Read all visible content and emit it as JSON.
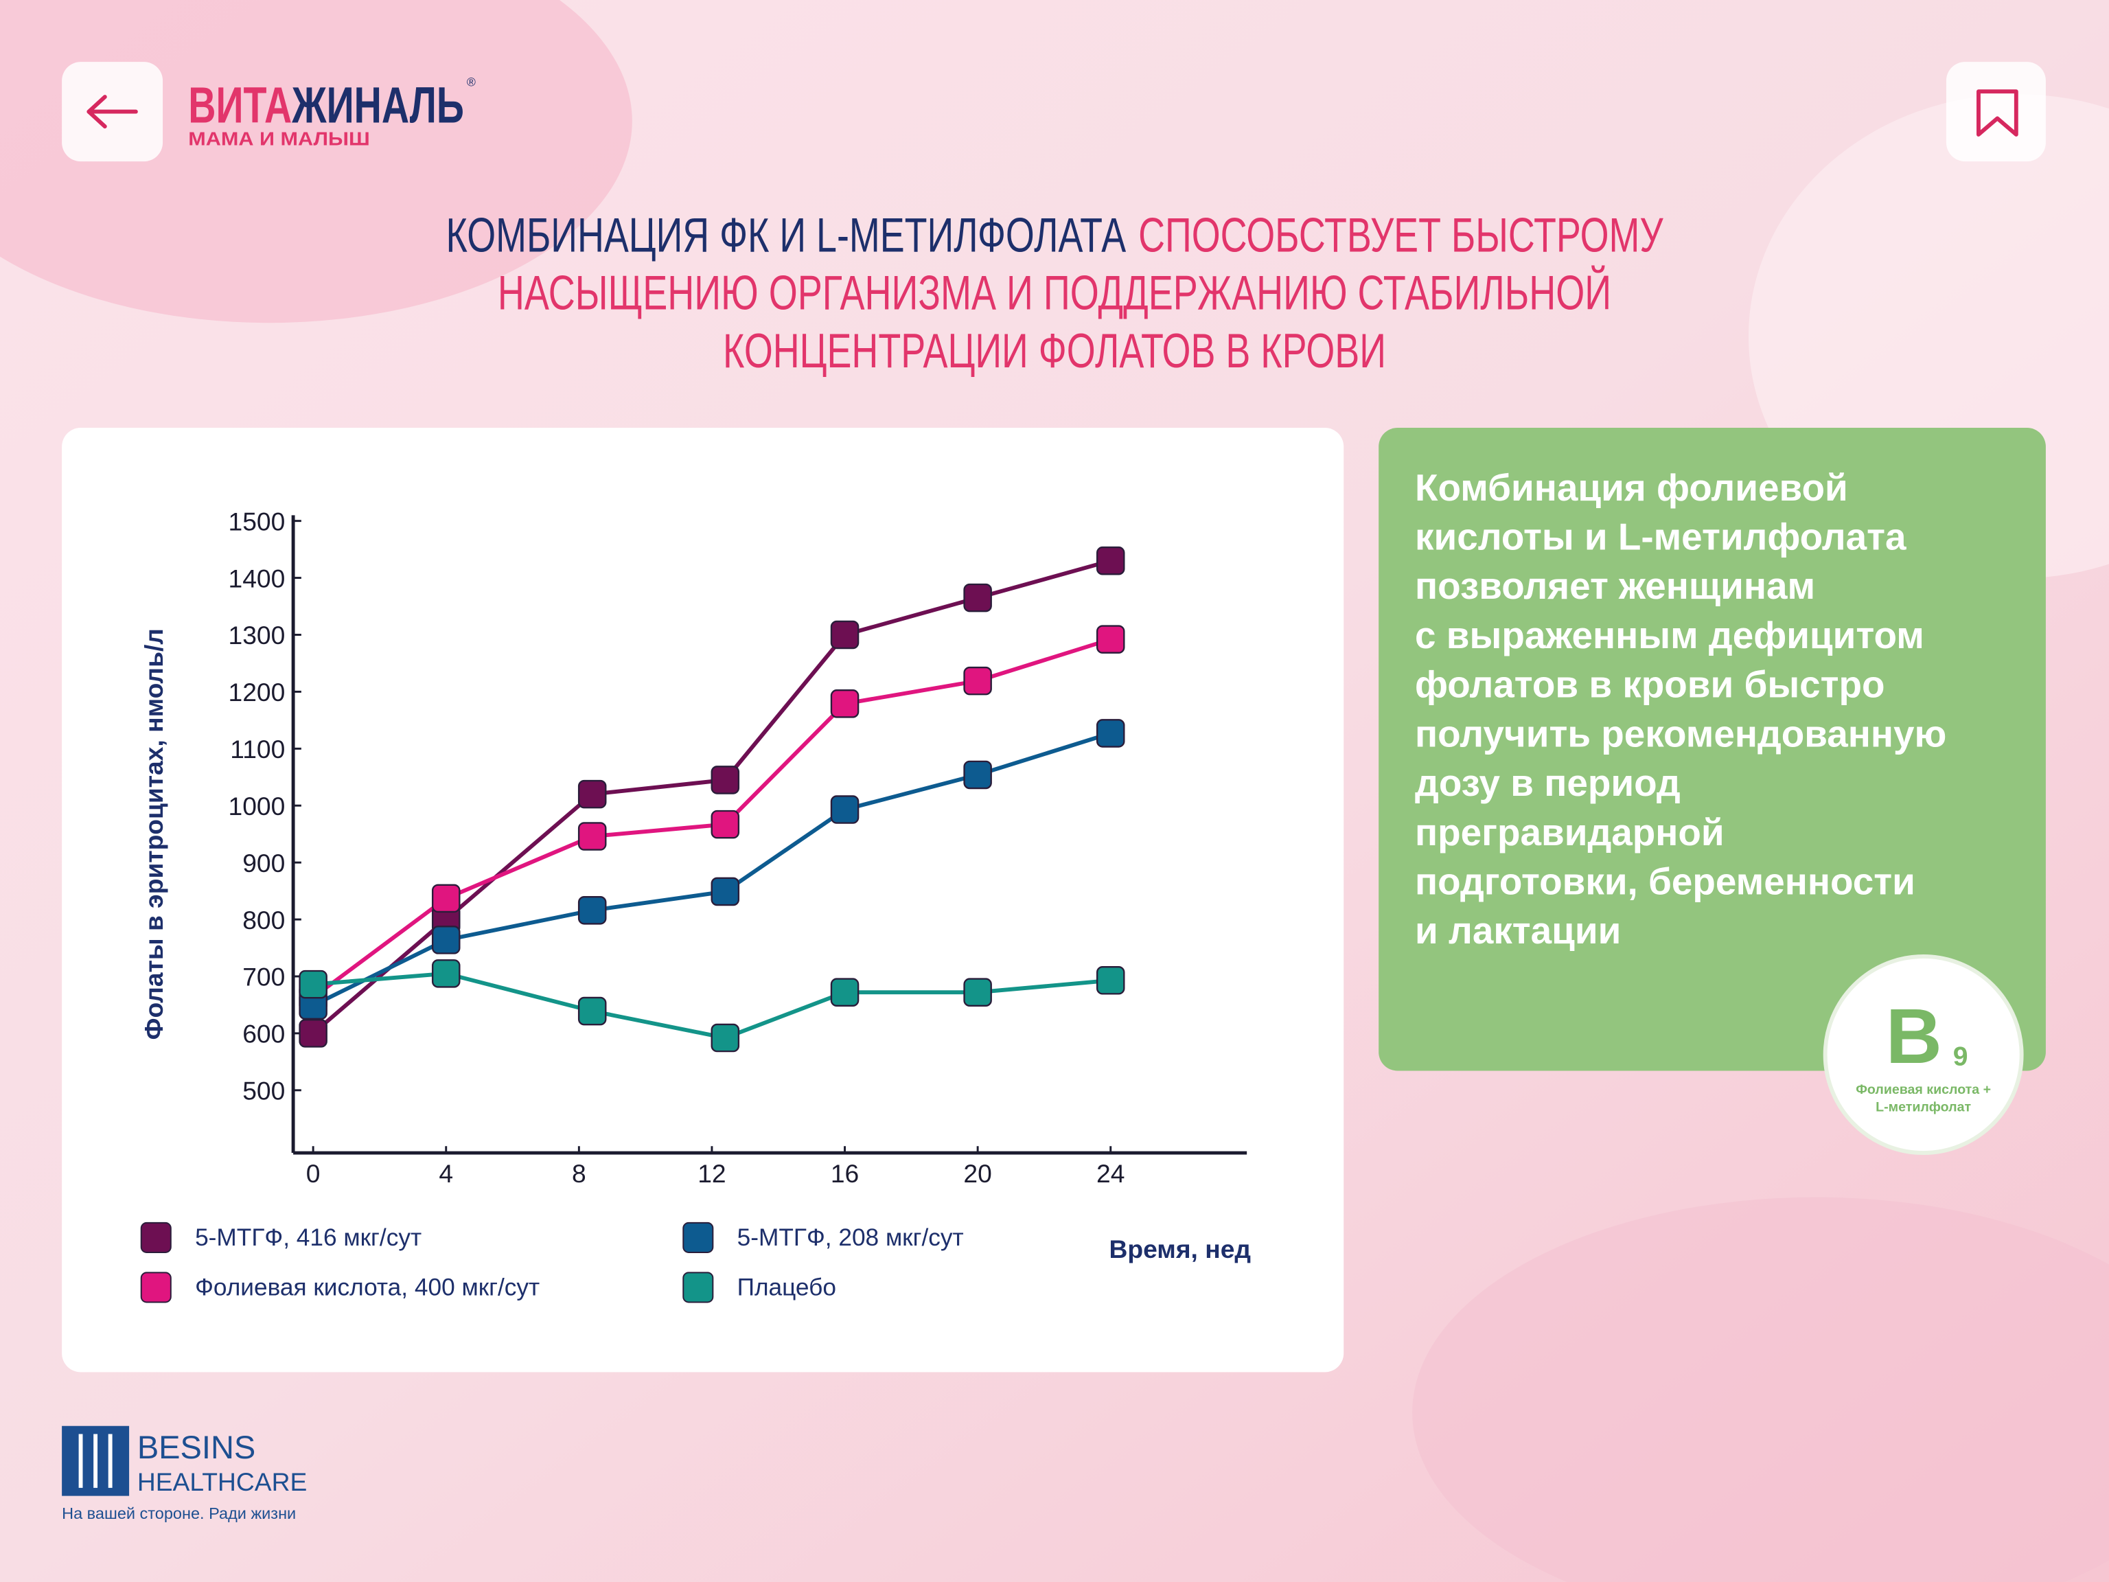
{
  "header": {
    "logo": {
      "part1": "ВИТА",
      "part2": "ЖИНАЛЬ",
      "registered": "®",
      "subtitle": "МАМА И МАЛЫШ"
    }
  },
  "title": {
    "highlight": "КОМБИНАЦИЯ ФК И L-МЕТИЛФОЛАТА",
    "line1_rest": "СПОСОБСТВУЕТ БЫСТРОМУ",
    "line2": "НАСЫЩЕНИЮ ОРГАНИЗМА И ПОДДЕРЖАНИЮ СТАБИЛЬНОЙ",
    "line3": "КОНЦЕНТРАЦИИ ФОЛАТОВ В КРОВИ"
  },
  "chart_data": {
    "type": "line",
    "x_label": "Время, нед",
    "y_label": "Фолаты в эритроцитах, нмоль/л",
    "x": [
      0,
      4,
      8.4,
      12.4,
      16,
      20,
      24
    ],
    "xlim": [
      -0.6,
      28.1
    ],
    "xticks": [
      0,
      4,
      8,
      12,
      16,
      20,
      24
    ],
    "ylim": [
      390,
      1510
    ],
    "yticks": [
      500,
      600,
      700,
      800,
      900,
      1000,
      1100,
      1200,
      1300,
      1400,
      1500
    ],
    "grid": false,
    "legend": "bottom",
    "series": [
      {
        "name": "5-МТГФ, 416 мкг/сут",
        "color": "#6d0f52",
        "values": [
          600,
          800,
          1020,
          1045,
          1300,
          1365,
          1430
        ]
      },
      {
        "name": "Фолиевая кислота, 400 мкг/сут",
        "color": "#e0157f",
        "values": [
          663,
          837,
          946,
          967,
          1179,
          1219,
          1292
        ]
      },
      {
        "name": "5-МТГФ, 208 мкг/сут",
        "color": "#0d5b90",
        "values": [
          649,
          764,
          816,
          849,
          993,
          1054,
          1127
        ]
      },
      {
        "name": "Плацебо",
        "color": "#139489",
        "values": [
          686,
          705,
          639,
          592,
          672,
          672,
          693
        ]
      }
    ]
  },
  "info_panel": {
    "lines": [
      "Комбинация фолиевой",
      "кислоты и L-метилфолата",
      "позволяет женщинам",
      "с выраженным дефицитом",
      "фолатов в крови быстро",
      "получить рекомендованную",
      "дозу в период",
      "прегравидарной",
      "подготовки, беременности",
      "и лактации"
    ],
    "badge": {
      "letter": "B",
      "subscript": "9",
      "caption": [
        "Фолиевая кислота +",
        "L-метилфолат"
      ]
    }
  },
  "footer": {
    "brand": "BESINS",
    "brand_sub": "HEALTHCARE",
    "slogan": "На вашей стороне. Ради жизни"
  }
}
